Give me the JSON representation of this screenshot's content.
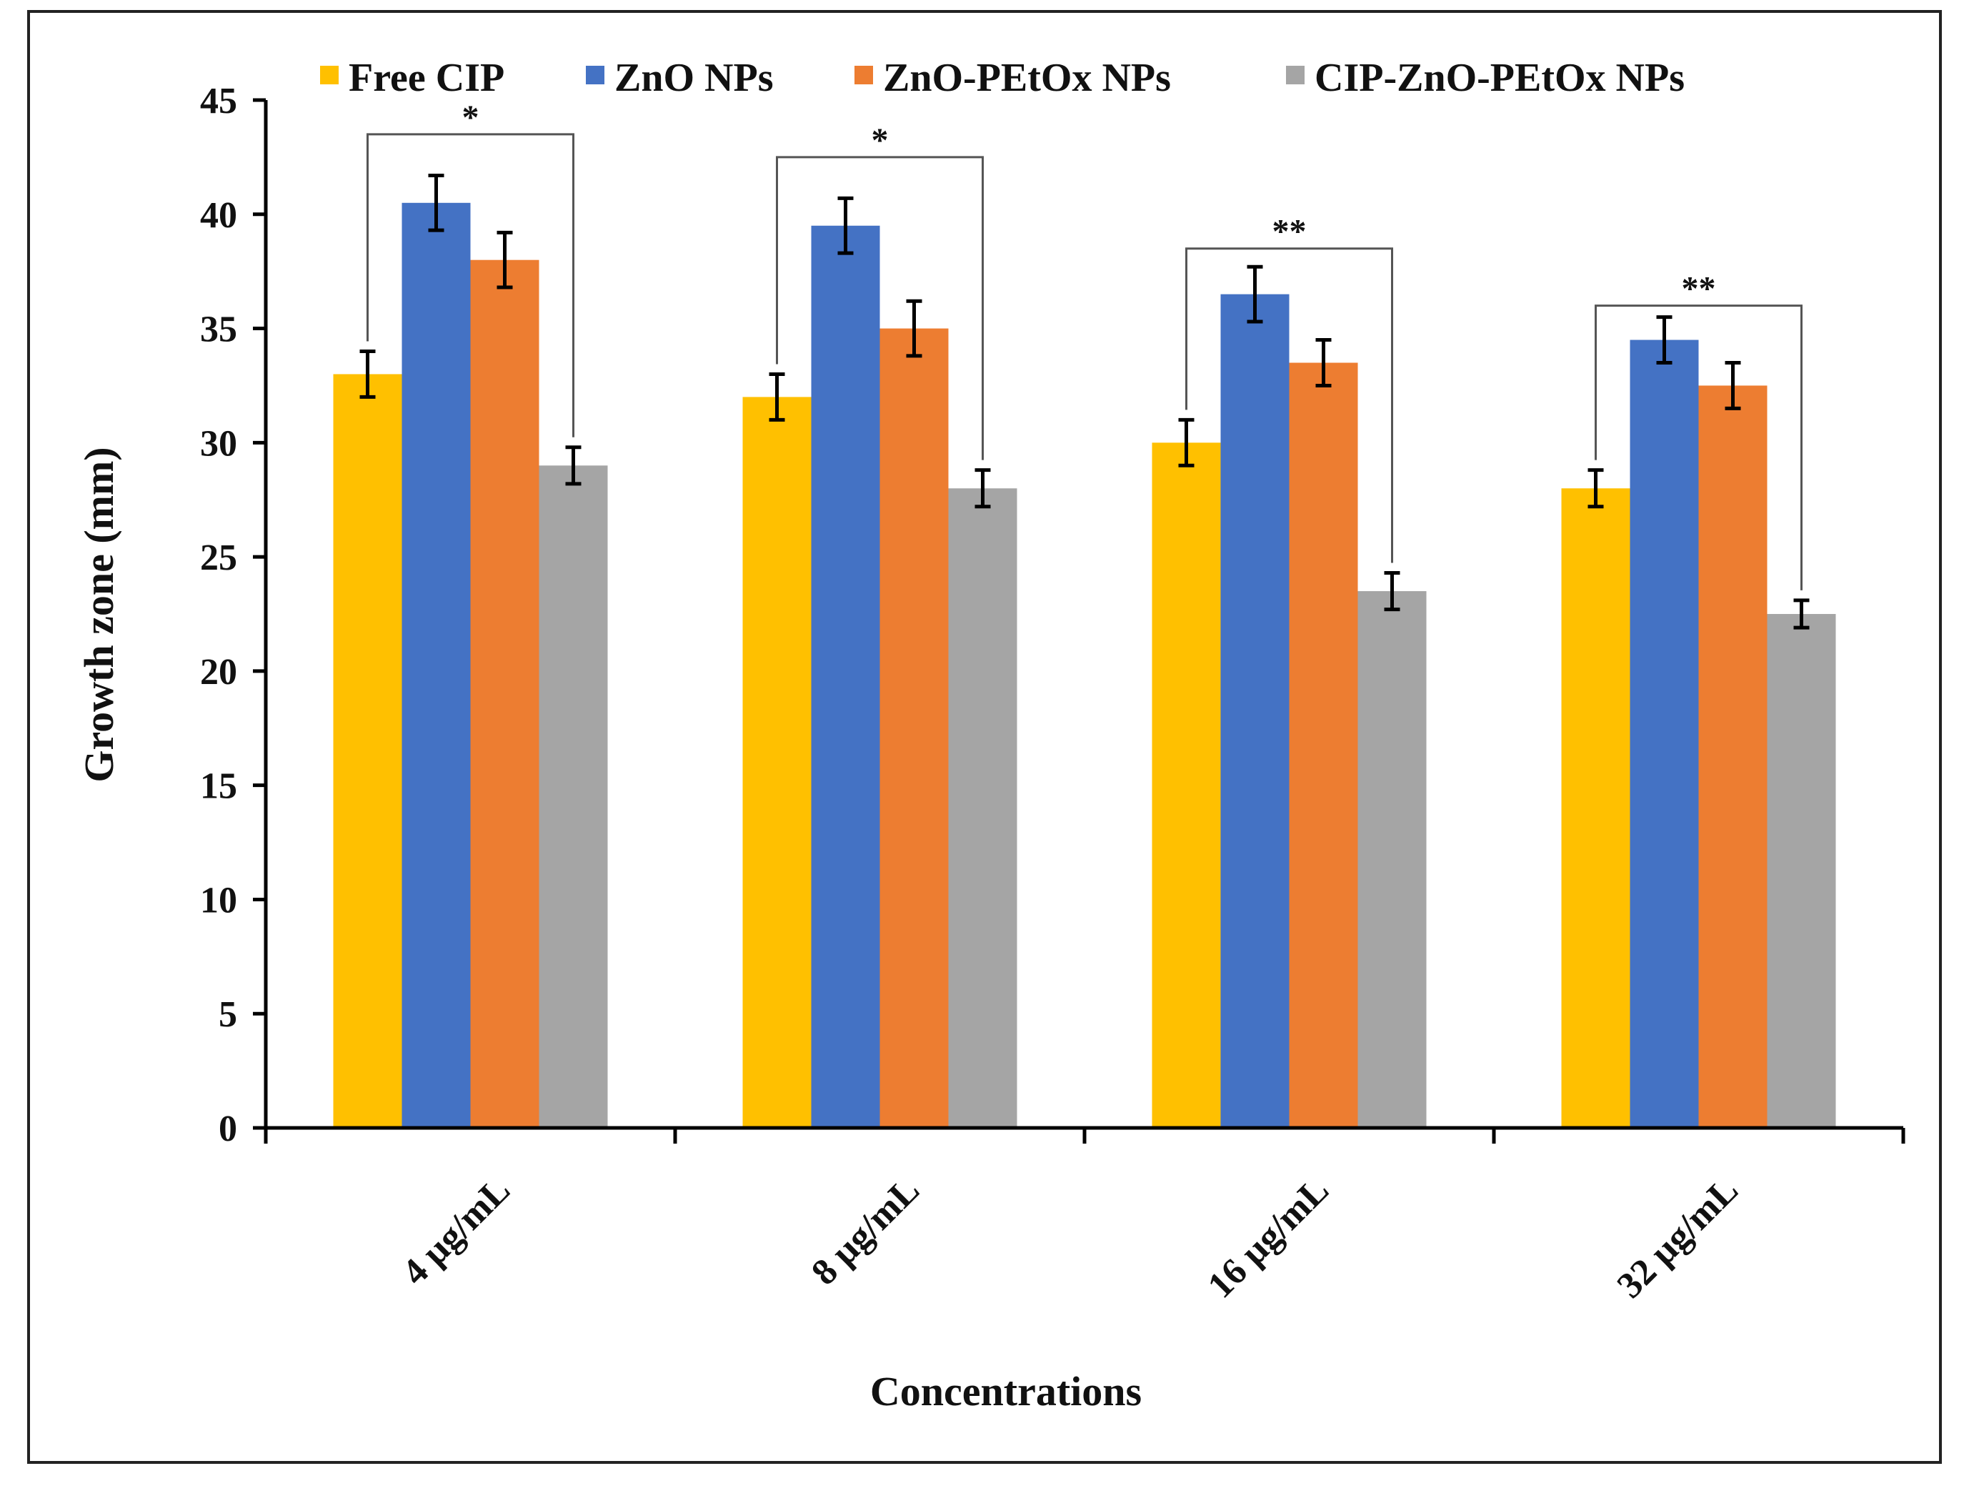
{
  "chart_data": {
    "type": "bar",
    "title": "",
    "xlabel": "Concentrations",
    "ylabel": "Growth zone (mm)",
    "categories": [
      "4 µg/mL",
      "8 µg/mL",
      "16 µg/mL",
      "32 µg/mL"
    ],
    "ylim": [
      0,
      45
    ],
    "yticks": [
      0,
      5,
      10,
      15,
      20,
      25,
      30,
      35,
      40,
      45
    ],
    "grid": false,
    "legend_position": "top",
    "series": [
      {
        "name": "Free CIP",
        "color": "#FFC000",
        "values": [
          33,
          32,
          30,
          28
        ],
        "errors": [
          1.0,
          1.0,
          1.0,
          0.8
        ]
      },
      {
        "name": "ZnO NPs",
        "color": "#4472C4",
        "values": [
          40.5,
          39.5,
          36.5,
          34.5
        ],
        "errors": [
          1.2,
          1.2,
          1.2,
          1.0
        ]
      },
      {
        "name": "ZnO-PEtOx NPs",
        "color": "#ED7D31",
        "values": [
          38,
          35,
          33.5,
          32.5
        ],
        "errors": [
          1.2,
          1.2,
          1.0,
          1.0
        ]
      },
      {
        "name": "CIP-ZnO-PEtOx NPs",
        "color": "#A5A5A5",
        "values": [
          29,
          28,
          23.5,
          22.5
        ],
        "errors": [
          0.8,
          0.8,
          0.8,
          0.6
        ]
      }
    ],
    "significance": [
      {
        "category": "4 µg/mL",
        "label": "*",
        "level": 43.5
      },
      {
        "category": "8 µg/mL",
        "label": "*",
        "level": 42.5
      },
      {
        "category": "16 µg/mL",
        "label": "**",
        "level": 38.5
      },
      {
        "category": "32 µg/mL",
        "label": "**",
        "level": 36
      }
    ]
  }
}
